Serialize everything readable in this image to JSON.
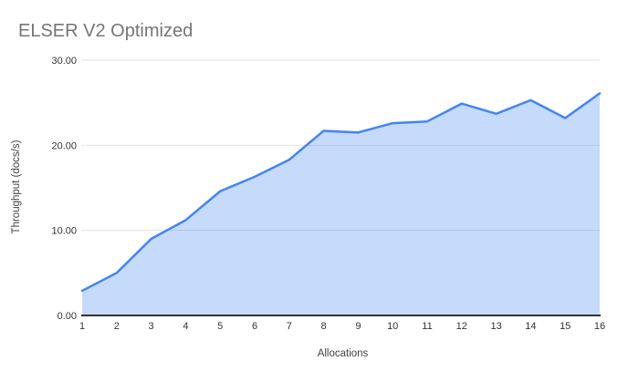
{
  "window": {
    "background": "#ffffff"
  },
  "chart_data": {
    "type": "area",
    "title": "ELSER V2 Optimized",
    "xlabel": "Allocations",
    "ylabel": "Throughput (docs/s)",
    "categories": [
      1,
      2,
      3,
      4,
      5,
      6,
      7,
      8,
      9,
      10,
      11,
      12,
      13,
      14,
      15,
      16
    ],
    "series": [
      {
        "name": "Throughput",
        "values": [
          2.9,
          5.0,
          9.0,
          11.2,
          14.6,
          16.3,
          18.3,
          21.7,
          21.5,
          22.6,
          22.8,
          24.9,
          23.7,
          25.3,
          23.2,
          26.1
        ]
      }
    ],
    "ylim": [
      0,
      30
    ],
    "y_ticks": [
      0,
      10,
      20,
      30
    ],
    "y_tick_labels": [
      "0.00",
      "10.00",
      "20.00",
      "30.00"
    ],
    "grid": true,
    "legend": "none",
    "colors": {
      "line": "#4285f4",
      "fill": "rgba(66,133,244,0.30)",
      "gridline": "#e3e3e3",
      "axis_line": "#333333",
      "tick_text": "#333333",
      "axis_title_text": "#424242",
      "title_text": "#757575"
    }
  }
}
